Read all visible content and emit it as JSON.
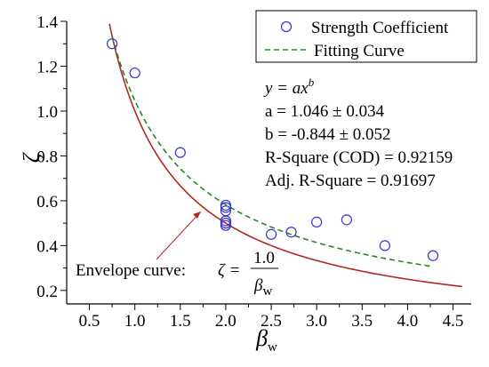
{
  "chart_data": {
    "type": "scatter",
    "xlabel": "β",
    "xlabel_sub": "w",
    "ylabel": "ζ",
    "xlim": [
      0.25,
      4.7
    ],
    "ylim": [
      0.14,
      1.4
    ],
    "xticks": [
      "0.5",
      "1.0",
      "1.5",
      "2.0",
      "2.5",
      "3.0",
      "3.5",
      "4.0",
      "4.5"
    ],
    "xtick_values": [
      0.5,
      1.0,
      1.5,
      2.0,
      2.5,
      3.0,
      3.5,
      4.0,
      4.5
    ],
    "yticks": [
      "0.2",
      "0.4",
      "0.6",
      "0.8",
      "1.0",
      "1.2",
      "1.4"
    ],
    "ytick_values": [
      0.2,
      0.4,
      0.6,
      0.8,
      1.0,
      1.2,
      1.4
    ],
    "legend": {
      "placement": "top-right",
      "entries": [
        {
          "label": "Strength Coefficient",
          "marker": "circle"
        },
        {
          "label": "Fitting Curve",
          "marker": "dashed-line"
        }
      ]
    },
    "series": [
      {
        "name": "Strength Coefficient",
        "kind": "scatter",
        "color": "#3333cc",
        "points": [
          [
            0.75,
            1.3
          ],
          [
            1.0,
            1.17
          ],
          [
            1.5,
            0.815
          ],
          [
            2.0,
            0.58
          ],
          [
            2.0,
            0.57
          ],
          [
            2.0,
            0.555
          ],
          [
            2.0,
            0.51
          ],
          [
            2.0,
            0.5
          ],
          [
            2.0,
            0.49
          ],
          [
            2.5,
            0.45
          ],
          [
            2.72,
            0.46
          ],
          [
            3.0,
            0.505
          ],
          [
            3.33,
            0.515
          ],
          [
            3.75,
            0.4
          ],
          [
            4.28,
            0.355
          ]
        ]
      },
      {
        "name": "Fitting Curve",
        "kind": "line",
        "style": "dashed",
        "color": "#22882a",
        "formula": {
          "a": 1.046,
          "b": -0.844
        },
        "x_range": [
          0.75,
          4.28
        ]
      },
      {
        "kind": "line",
        "style": "solid",
        "color": "#b3261e",
        "formula": {
          "numerator": 1.0
        },
        "x_range": [
          0.72,
          4.6
        ]
      }
    ],
    "stats": {
      "equation_parts": [
        "y = ax",
        "b"
      ],
      "a_line": "a = 1.046 ± 0.034",
      "b_line": "b = -0.844 ± 0.052",
      "r_square": "R-Square (COD) = 0.92159",
      "adj_r_square": "Adj. R-Square = 0.91697"
    },
    "annotation": {
      "label": "Envelope curve:",
      "formula_lhs": "ζ =",
      "numerator": "1.0",
      "denominator": "β",
      "denominator_sub": "w",
      "target": [
        2.0,
        0.5
      ]
    },
    "colors": {
      "axis": "#000000",
      "scatter": "#3333cc",
      "fit": "#22882a",
      "envelope": "#b3261e"
    }
  }
}
